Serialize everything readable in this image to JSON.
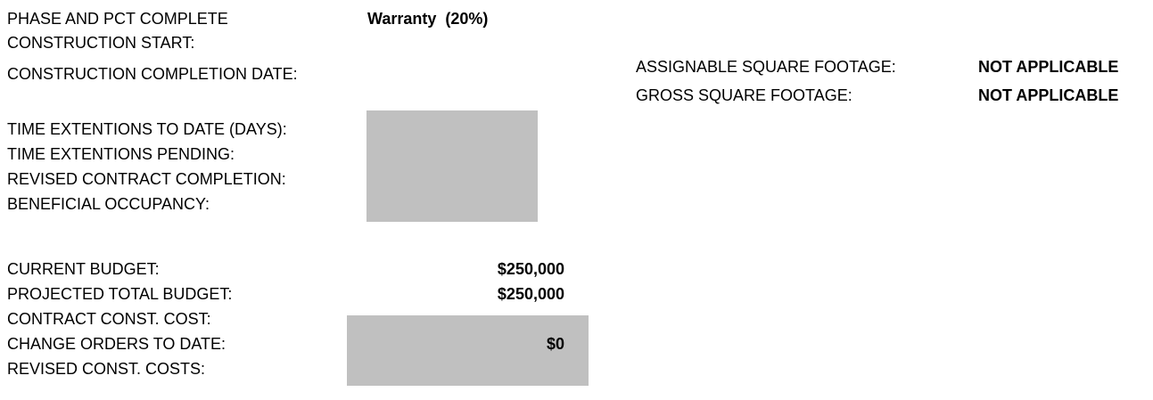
{
  "left_fields": [
    {
      "label": "PHASE AND PCT COMPLETE",
      "value": "Warranty  (20%)"
    },
    {
      "label": "CONSTRUCTION START:"
    },
    {
      "label": "CONSTRUCTION COMPLETION DATE:"
    },
    {
      "label": "TIME EXTENTIONS TO DATE (DAYS):"
    },
    {
      "label": "TIME EXTENTIONS PENDING:"
    },
    {
      "label": "REVISED CONTRACT COMPLETION:"
    },
    {
      "label": "BENEFICIAL OCCUPANCY:"
    },
    {
      "label": "CURRENT BUDGET:",
      "value": "$250,000"
    },
    {
      "label": "PROJECTED TOTAL BUDGET:",
      "value": "$250,000"
    },
    {
      "label": "CONTRACT CONST. COST:"
    },
    {
      "label": "CHANGE ORDERS TO DATE:",
      "value": "$0"
    },
    {
      "label": "REVISED CONST. COSTS:"
    }
  ],
  "right_fields": [
    {
      "label": "ASSIGNABLE SQUARE FOOTAGE:",
      "value": "NOT APPLICABLE"
    },
    {
      "label": "GROSS SQUARE FOOTAGE:",
      "value": "NOT APPLICABLE"
    }
  ]
}
